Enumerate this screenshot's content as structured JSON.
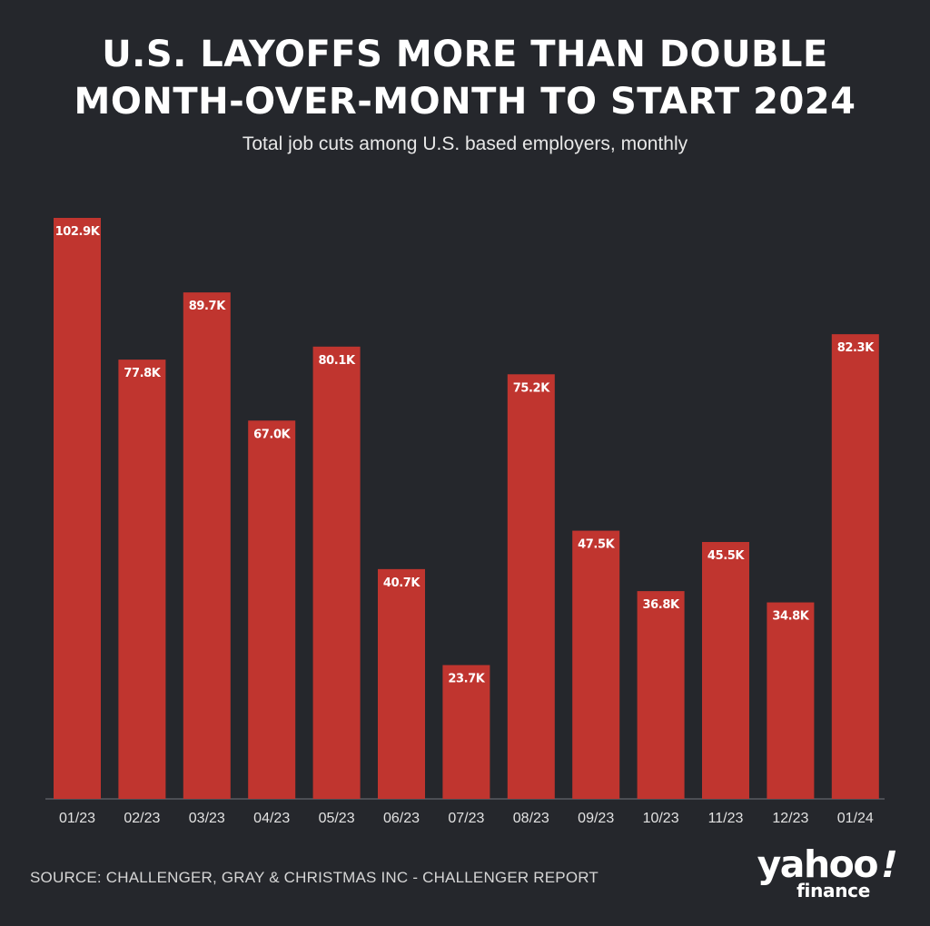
{
  "header": {
    "title_line1": "U.S. LAYOFFS MORE THAN DOUBLE",
    "title_line2": "MONTH-OVER-MONTH TO START 2024",
    "subtitle": "Total job cuts among U.S. based employers, monthly"
  },
  "footer": {
    "source": "SOURCE: CHALLENGER, GRAY & CHRISTMAS INC - CHALLENGER REPORT",
    "brand_top": "yahoo",
    "brand_bang": "!",
    "brand_bottom": "finance"
  },
  "colors": {
    "background": "#25272c",
    "bar": "#c0352f",
    "text": "#ffffff",
    "axis": "#5a5c62"
  },
  "chart_data": {
    "type": "bar",
    "title": "U.S. LAYOFFS MORE THAN DOUBLE MONTH-OVER-MONTH TO START 2024",
    "subtitle": "Total job cuts among U.S. based employers, monthly",
    "xlabel": "",
    "ylabel": "",
    "categories": [
      "01/23",
      "02/23",
      "03/23",
      "04/23",
      "05/23",
      "06/23",
      "07/23",
      "08/23",
      "09/23",
      "10/23",
      "11/23",
      "12/23",
      "01/24"
    ],
    "values": [
      102.9,
      77.8,
      89.7,
      67.0,
      80.1,
      40.7,
      23.7,
      75.2,
      47.5,
      36.8,
      45.5,
      34.8,
      82.3
    ],
    "data_labels": [
      "102.9K",
      "77.8K",
      "89.7K",
      "67.0K",
      "80.1K",
      "40.7K",
      "23.7K",
      "75.2K",
      "47.5K",
      "36.8K",
      "45.5K",
      "34.8K",
      "82.3K"
    ],
    "unit": "thousands",
    "ylim": [
      0,
      102.9
    ],
    "grid": false,
    "legend": "none"
  }
}
